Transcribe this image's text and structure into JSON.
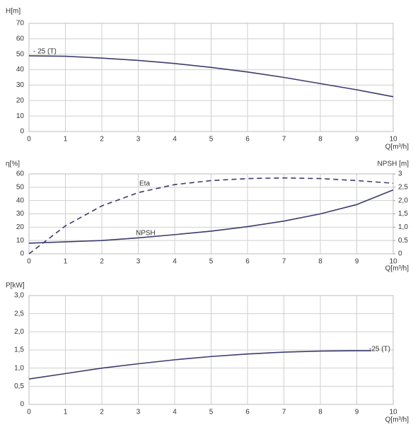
{
  "chart_data": [
    {
      "type": "line",
      "y_label": "H[m]",
      "x_label": "Q[m³/h]",
      "xlim": [
        0,
        10
      ],
      "xticks": [
        0,
        1,
        2,
        3,
        4,
        5,
        6,
        7,
        8,
        9,
        10
      ],
      "ylim": [
        0,
        70
      ],
      "yticks": [
        0,
        10,
        20,
        30,
        40,
        50,
        60,
        70
      ],
      "grid": true,
      "series": [
        {
          "name": "- 25 (T)",
          "color": "#3b3b6e",
          "line_style": "solid",
          "x": [
            0,
            1,
            2,
            3,
            4,
            5,
            6,
            7,
            8,
            9,
            10
          ],
          "values": [
            49,
            48.7,
            47.5,
            46,
            44,
            41.5,
            38.5,
            35,
            31,
            27,
            22.5
          ]
        }
      ]
    },
    {
      "type": "line",
      "y_label": "η[%]",
      "y2_label": "NPSH [m]",
      "x_label": "Q[m³/h]",
      "xlim": [
        0,
        10
      ],
      "xticks": [
        0,
        1,
        2,
        3,
        4,
        5,
        6,
        7,
        8,
        9,
        10
      ],
      "ylim": [
        0,
        60
      ],
      "yticks": [
        0,
        10,
        20,
        30,
        40,
        50,
        60
      ],
      "y2lim": [
        0,
        3
      ],
      "y2ticks": [
        0,
        {
          "value": 0.5,
          "label": "0,5"
        },
        {
          "value": 1,
          "label": "1,0"
        },
        {
          "value": 1.5,
          "label": "1,5"
        },
        {
          "value": 2,
          "label": "2,0"
        },
        {
          "value": 2.5,
          "label": "2,5"
        },
        3
      ],
      "grid": true,
      "series": [
        {
          "name": "Eta",
          "color": "#3b3b6e",
          "line_style": "dashed",
          "x": [
            0,
            1,
            2,
            3,
            4,
            5,
            6,
            7,
            8,
            9,
            10
          ],
          "values": [
            0,
            21,
            36,
            46,
            52,
            55,
            56.5,
            57,
            56.5,
            55,
            53
          ]
        },
        {
          "name": "NPSH",
          "color": "#3b3b6e",
          "line_style": "solid",
          "axis": "y2",
          "x": [
            0,
            1,
            2,
            3,
            4,
            5,
            6,
            7,
            8,
            9,
            10
          ],
          "values": [
            0.4,
            0.45,
            0.5,
            0.6,
            0.72,
            0.85,
            1.02,
            1.23,
            1.5,
            1.85,
            2.4
          ]
        }
      ]
    },
    {
      "type": "line",
      "y_label": "P[kW]",
      "x_label": "Q[m³/h]",
      "xlim": [
        0,
        10
      ],
      "xticks": [
        0,
        1,
        2,
        3,
        4,
        5,
        6,
        7,
        8,
        9,
        10
      ],
      "ylim": [
        0,
        3
      ],
      "yticks": [
        0,
        {
          "value": 0.5,
          "label": "0,5"
        },
        {
          "value": 1,
          "label": "1,0"
        },
        {
          "value": 1.5,
          "label": "1,5"
        },
        {
          "value": 2,
          "label": "2,0"
        },
        {
          "value": 2.5,
          "label": "2,5"
        },
        {
          "value": 3,
          "label": "3,0"
        }
      ],
      "grid": true,
      "series": [
        {
          "name": "-25 (T)",
          "color": "#3b3b6e",
          "line_style": "solid",
          "x": [
            0,
            1,
            2,
            3,
            4,
            5,
            6,
            7,
            8,
            9,
            9.4
          ],
          "values": [
            0.7,
            0.85,
            1.0,
            1.12,
            1.23,
            1.32,
            1.39,
            1.44,
            1.47,
            1.48,
            1.48
          ]
        }
      ]
    }
  ]
}
